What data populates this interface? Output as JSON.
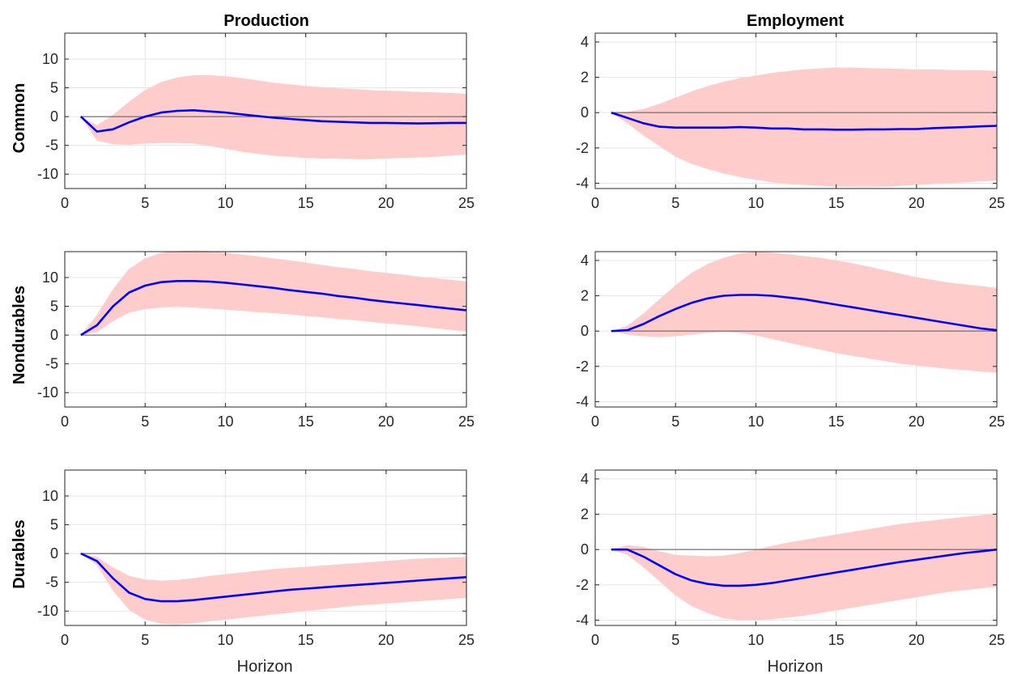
{
  "columns": [
    "Production",
    "Employment"
  ],
  "rows": [
    "Common",
    "Nondurables",
    "Durables"
  ],
  "xlabel": "Horizon",
  "chart_data": [
    {
      "type": "area",
      "panel": "Common / Production",
      "x": [
        1,
        2,
        3,
        4,
        5,
        6,
        7,
        8,
        9,
        10,
        11,
        12,
        13,
        14,
        15,
        16,
        17,
        18,
        19,
        20,
        21,
        22,
        23,
        24,
        25
      ],
      "series": [
        {
          "role": "median",
          "color": "#0000ff",
          "values": [
            0,
            -2.6,
            -2.2,
            -1.0,
            0.0,
            0.7,
            1.0,
            1.1,
            0.9,
            0.7,
            0.4,
            0.1,
            -0.2,
            -0.4,
            -0.6,
            -0.8,
            -0.9,
            -1.0,
            -1.1,
            -1.1,
            -1.15,
            -1.2,
            -1.15,
            -1.1,
            -1.1
          ]
        },
        {
          "role": "band_upper",
          "color": "#ffcccc",
          "values": [
            0,
            -1.5,
            0.3,
            2.6,
            4.6,
            6.0,
            6.8,
            7.2,
            7.2,
            7.0,
            6.7,
            6.3,
            5.9,
            5.6,
            5.3,
            5.1,
            4.9,
            4.8,
            4.6,
            4.5,
            4.4,
            4.3,
            4.2,
            4.1,
            4.0
          ]
        },
        {
          "role": "band_lower",
          "color": "#ffcccc",
          "values": [
            0,
            -4.2,
            -4.8,
            -4.9,
            -4.7,
            -4.6,
            -4.6,
            -4.7,
            -5.1,
            -5.6,
            -6.1,
            -6.5,
            -6.8,
            -7.0,
            -7.2,
            -7.3,
            -7.3,
            -7.4,
            -7.4,
            -7.3,
            -7.2,
            -7.1,
            -7.0,
            -6.8,
            -6.6
          ]
        }
      ],
      "xlim": [
        0,
        25
      ],
      "ylim": [
        -12.5,
        14.5
      ],
      "xticks": [
        "0",
        "5",
        "10",
        "15",
        "20",
        "25"
      ],
      "yticks": [
        "-10",
        "-5",
        "0",
        "5",
        "10"
      ],
      "grid": true
    },
    {
      "type": "area",
      "panel": "Common / Employment",
      "x": [
        1,
        2,
        3,
        4,
        5,
        6,
        7,
        8,
        9,
        10,
        11,
        12,
        13,
        14,
        15,
        16,
        17,
        18,
        19,
        20,
        21,
        22,
        23,
        24,
        25
      ],
      "series": [
        {
          "role": "median",
          "color": "#0000ff",
          "values": [
            0,
            -0.3,
            -0.6,
            -0.8,
            -0.85,
            -0.85,
            -0.85,
            -0.85,
            -0.82,
            -0.85,
            -0.9,
            -0.9,
            -0.95,
            -0.95,
            -0.97,
            -0.97,
            -0.95,
            -0.95,
            -0.93,
            -0.93,
            -0.88,
            -0.85,
            -0.82,
            -0.78,
            -0.75
          ]
        },
        {
          "role": "band_upper",
          "color": "#ffcccc",
          "values": [
            0,
            0.05,
            0.2,
            0.5,
            0.85,
            1.2,
            1.5,
            1.75,
            1.95,
            2.1,
            2.25,
            2.35,
            2.45,
            2.5,
            2.55,
            2.55,
            2.52,
            2.5,
            2.48,
            2.45,
            2.45,
            2.42,
            2.4,
            2.4,
            2.35
          ]
        },
        {
          "role": "band_lower",
          "color": "#ffcccc",
          "values": [
            0,
            -0.6,
            -1.3,
            -1.9,
            -2.5,
            -2.9,
            -3.2,
            -3.45,
            -3.65,
            -3.8,
            -3.95,
            -4.05,
            -4.1,
            -4.15,
            -4.2,
            -4.2,
            -4.2,
            -4.2,
            -4.15,
            -4.1,
            -4.05,
            -4.0,
            -3.95,
            -3.9,
            -3.85
          ]
        }
      ],
      "xlim": [
        0,
        25
      ],
      "ylim": [
        -4.3,
        4.5
      ],
      "xticks": [
        "0",
        "5",
        "10",
        "15",
        "20",
        "25"
      ],
      "yticks": [
        "-4",
        "-2",
        "0",
        "2",
        "4"
      ],
      "grid": true
    },
    {
      "type": "area",
      "panel": "Nondurables / Production",
      "x": [
        1,
        2,
        3,
        4,
        5,
        6,
        7,
        8,
        9,
        10,
        11,
        12,
        13,
        14,
        15,
        16,
        17,
        18,
        19,
        20,
        21,
        22,
        23,
        24,
        25
      ],
      "series": [
        {
          "role": "median",
          "color": "#0000ff",
          "values": [
            0,
            1.7,
            5.0,
            7.4,
            8.6,
            9.2,
            9.4,
            9.4,
            9.3,
            9.1,
            8.8,
            8.5,
            8.2,
            7.8,
            7.5,
            7.2,
            6.8,
            6.5,
            6.1,
            5.8,
            5.5,
            5.2,
            4.9,
            4.6,
            4.3
          ]
        },
        {
          "role": "band_upper",
          "color": "#ffcccc",
          "values": [
            0,
            3.5,
            8.0,
            11.5,
            13.3,
            14.3,
            14.6,
            14.7,
            14.6,
            14.3,
            14.0,
            13.7,
            13.3,
            13.0,
            12.6,
            12.2,
            11.8,
            11.5,
            11.1,
            10.8,
            10.5,
            10.2,
            9.9,
            9.6,
            9.3
          ]
        },
        {
          "role": "band_lower",
          "color": "#ffcccc",
          "values": [
            0,
            0.5,
            2.4,
            3.9,
            4.5,
            4.8,
            4.9,
            4.8,
            4.6,
            4.4,
            4.2,
            4.0,
            3.8,
            3.6,
            3.3,
            3.1,
            2.8,
            2.6,
            2.3,
            2.0,
            1.8,
            1.5,
            1.2,
            0.9,
            0.6
          ]
        }
      ],
      "xlim": [
        0,
        25
      ],
      "ylim": [
        -12.5,
        14.5
      ],
      "xticks": [
        "0",
        "5",
        "10",
        "15",
        "20",
        "25"
      ],
      "yticks": [
        "-10",
        "-5",
        "0",
        "5",
        "10"
      ],
      "grid": true
    },
    {
      "type": "area",
      "panel": "Nondurables / Employment",
      "x": [
        1,
        2,
        3,
        4,
        5,
        6,
        7,
        8,
        9,
        10,
        11,
        12,
        13,
        14,
        15,
        16,
        17,
        18,
        19,
        20,
        21,
        22,
        23,
        24,
        25
      ],
      "series": [
        {
          "role": "median",
          "color": "#0000ff",
          "values": [
            0,
            0.05,
            0.4,
            0.85,
            1.25,
            1.6,
            1.85,
            2.0,
            2.05,
            2.05,
            2.0,
            1.9,
            1.8,
            1.65,
            1.5,
            1.35,
            1.2,
            1.05,
            0.9,
            0.75,
            0.6,
            0.45,
            0.3,
            0.15,
            0.05
          ]
        },
        {
          "role": "band_upper",
          "color": "#ffcccc",
          "values": [
            0,
            0.3,
            1.0,
            1.8,
            2.6,
            3.3,
            3.8,
            4.15,
            4.4,
            4.5,
            4.45,
            4.35,
            4.25,
            4.15,
            4.0,
            3.85,
            3.65,
            3.45,
            3.25,
            3.05,
            2.9,
            2.75,
            2.65,
            2.55,
            2.45
          ]
        },
        {
          "role": "band_lower",
          "color": "#ffcccc",
          "values": [
            0,
            -0.2,
            -0.3,
            -0.35,
            -0.3,
            -0.2,
            -0.1,
            -0.05,
            -0.1,
            -0.25,
            -0.45,
            -0.65,
            -0.85,
            -1.05,
            -1.25,
            -1.4,
            -1.55,
            -1.7,
            -1.85,
            -1.95,
            -2.05,
            -2.15,
            -2.2,
            -2.3,
            -2.35
          ]
        }
      ],
      "xlim": [
        0,
        25
      ],
      "ylim": [
        -4.3,
        4.5
      ],
      "xticks": [
        "0",
        "5",
        "10",
        "15",
        "20",
        "25"
      ],
      "yticks": [
        "-4",
        "-2",
        "0",
        "2",
        "4"
      ],
      "grid": true
    },
    {
      "type": "area",
      "panel": "Durables / Production",
      "x": [
        1,
        2,
        3,
        4,
        5,
        6,
        7,
        8,
        9,
        10,
        11,
        12,
        13,
        14,
        15,
        16,
        17,
        18,
        19,
        20,
        21,
        22,
        23,
        24,
        25
      ],
      "series": [
        {
          "role": "median",
          "color": "#0000ff",
          "values": [
            0,
            -1.3,
            -4.3,
            -6.8,
            -7.9,
            -8.3,
            -8.3,
            -8.1,
            -7.8,
            -7.5,
            -7.2,
            -6.9,
            -6.6,
            -6.3,
            -6.1,
            -5.9,
            -5.7,
            -5.5,
            -5.3,
            -5.1,
            -4.9,
            -4.7,
            -4.5,
            -4.3,
            -4.1
          ]
        },
        {
          "role": "band_upper",
          "color": "#ffcccc",
          "values": [
            0,
            -0.6,
            -2.4,
            -3.9,
            -4.5,
            -4.7,
            -4.6,
            -4.3,
            -3.9,
            -3.6,
            -3.3,
            -3.0,
            -2.7,
            -2.5,
            -2.3,
            -2.1,
            -1.9,
            -1.7,
            -1.5,
            -1.3,
            -1.1,
            -0.9,
            -0.8,
            -0.7,
            -0.6
          ]
        },
        {
          "role": "band_lower",
          "color": "#ffcccc",
          "values": [
            0,
            -2.0,
            -6.5,
            -9.8,
            -11.5,
            -12.2,
            -12.3,
            -12.1,
            -11.8,
            -11.5,
            -11.2,
            -10.9,
            -10.6,
            -10.3,
            -10.0,
            -9.7,
            -9.4,
            -9.1,
            -8.9,
            -8.7,
            -8.5,
            -8.3,
            -8.1,
            -7.9,
            -7.7
          ]
        }
      ],
      "xlim": [
        0,
        25
      ],
      "ylim": [
        -12.5,
        14.5
      ],
      "xticks": [
        "0",
        "5",
        "10",
        "15",
        "20",
        "25"
      ],
      "yticks": [
        "-10",
        "-5",
        "0",
        "5",
        "10"
      ],
      "grid": true
    },
    {
      "type": "area",
      "panel": "Durables / Employment",
      "x": [
        1,
        2,
        3,
        4,
        5,
        6,
        7,
        8,
        9,
        10,
        11,
        12,
        13,
        14,
        15,
        16,
        17,
        18,
        19,
        20,
        21,
        22,
        23,
        24,
        25
      ],
      "series": [
        {
          "role": "median",
          "color": "#0000ff",
          "values": [
            0,
            0.0,
            -0.4,
            -0.9,
            -1.4,
            -1.75,
            -1.95,
            -2.05,
            -2.05,
            -2.0,
            -1.9,
            -1.75,
            -1.6,
            -1.45,
            -1.3,
            -1.15,
            -1.0,
            -0.85,
            -0.7,
            -0.58,
            -0.45,
            -0.32,
            -0.2,
            -0.1,
            0.0
          ]
        },
        {
          "role": "band_upper",
          "color": "#ffcccc",
          "values": [
            0,
            0.25,
            0.15,
            -0.1,
            -0.3,
            -0.35,
            -0.38,
            -0.35,
            -0.2,
            0.0,
            0.2,
            0.4,
            0.55,
            0.7,
            0.85,
            1.0,
            1.15,
            1.3,
            1.45,
            1.55,
            1.65,
            1.75,
            1.85,
            1.95,
            2.05
          ]
        },
        {
          "role": "band_lower",
          "color": "#ffcccc",
          "values": [
            0,
            -0.3,
            -1.0,
            -1.8,
            -2.6,
            -3.2,
            -3.6,
            -3.9,
            -4.0,
            -4.0,
            -3.95,
            -3.85,
            -3.75,
            -3.6,
            -3.45,
            -3.3,
            -3.15,
            -3.0,
            -2.85,
            -2.7,
            -2.55,
            -2.4,
            -2.3,
            -2.2,
            -2.1
          ]
        }
      ],
      "xlim": [
        0,
        25
      ],
      "ylim": [
        -4.3,
        4.5
      ],
      "xticks": [
        "0",
        "5",
        "10",
        "15",
        "20",
        "25"
      ],
      "yticks": [
        "-4",
        "-2",
        "0",
        "2",
        "4"
      ],
      "grid": true
    }
  ]
}
